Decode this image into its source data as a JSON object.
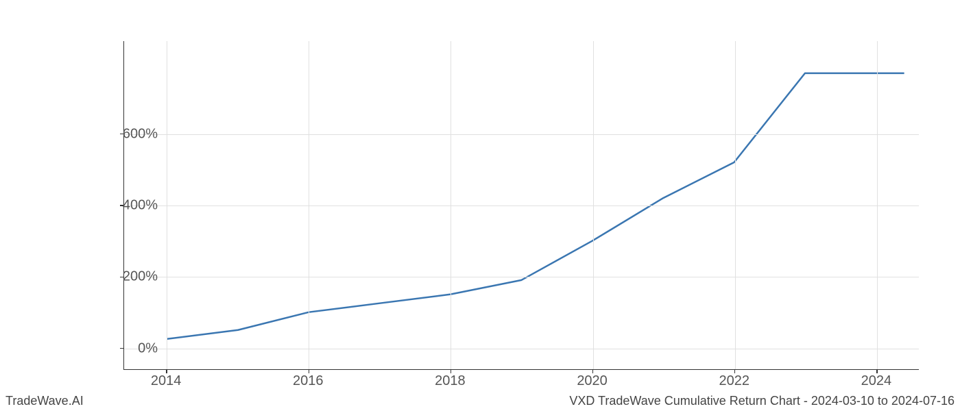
{
  "chart": {
    "type": "line",
    "x_years": [
      2014,
      2015,
      2016,
      2017,
      2018,
      2019,
      2020,
      2021,
      2022,
      2023,
      2024,
      2024.4
    ],
    "y_values_pct": [
      25,
      50,
      100,
      125,
      150,
      190,
      300,
      420,
      520,
      770,
      770,
      770
    ],
    "line_color": "#3a76b1",
    "line_width": 2.5,
    "xlim": [
      2013.4,
      2024.6
    ],
    "ylim": [
      -60,
      860
    ],
    "x_ticks": [
      2014,
      2016,
      2018,
      2020,
      2022,
      2024
    ],
    "y_ticks": [
      0,
      200,
      400,
      600
    ],
    "y_tick_suffix": "%",
    "background_color": "#ffffff",
    "grid_color": "#e0e0e0",
    "axis_color": "#333333",
    "tick_label_color": "#555555",
    "tick_label_fontsize": 20
  },
  "footer": {
    "left": "TradeWave.AI",
    "right": "VXD TradeWave Cumulative Return Chart - 2024-03-10 to 2024-07-16",
    "fontsize": 18,
    "color": "#444444"
  }
}
